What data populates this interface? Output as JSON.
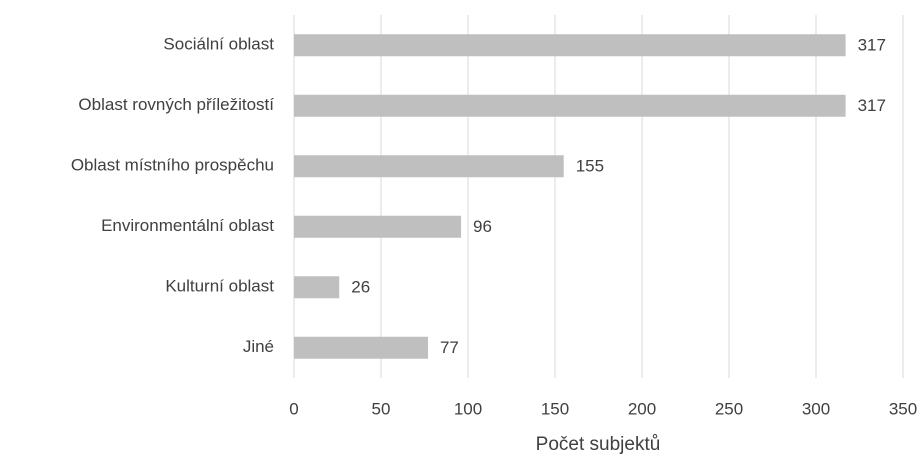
{
  "chart_data": {
    "type": "bar",
    "orientation": "horizontal",
    "categories": [
      "Sociální oblast",
      "Oblast rovných příležitostí",
      "Oblast místního prospěchu",
      "Environmentální oblast",
      "Kulturní oblast",
      "Jiné"
    ],
    "values": [
      317,
      317,
      155,
      96,
      26,
      77
    ],
    "color": "#bfbfbf",
    "xlim": [
      0,
      350
    ],
    "xticks": [
      0,
      50,
      100,
      150,
      200,
      250,
      300,
      350
    ],
    "x_label": "Počet subjektů",
    "grid": true
  }
}
